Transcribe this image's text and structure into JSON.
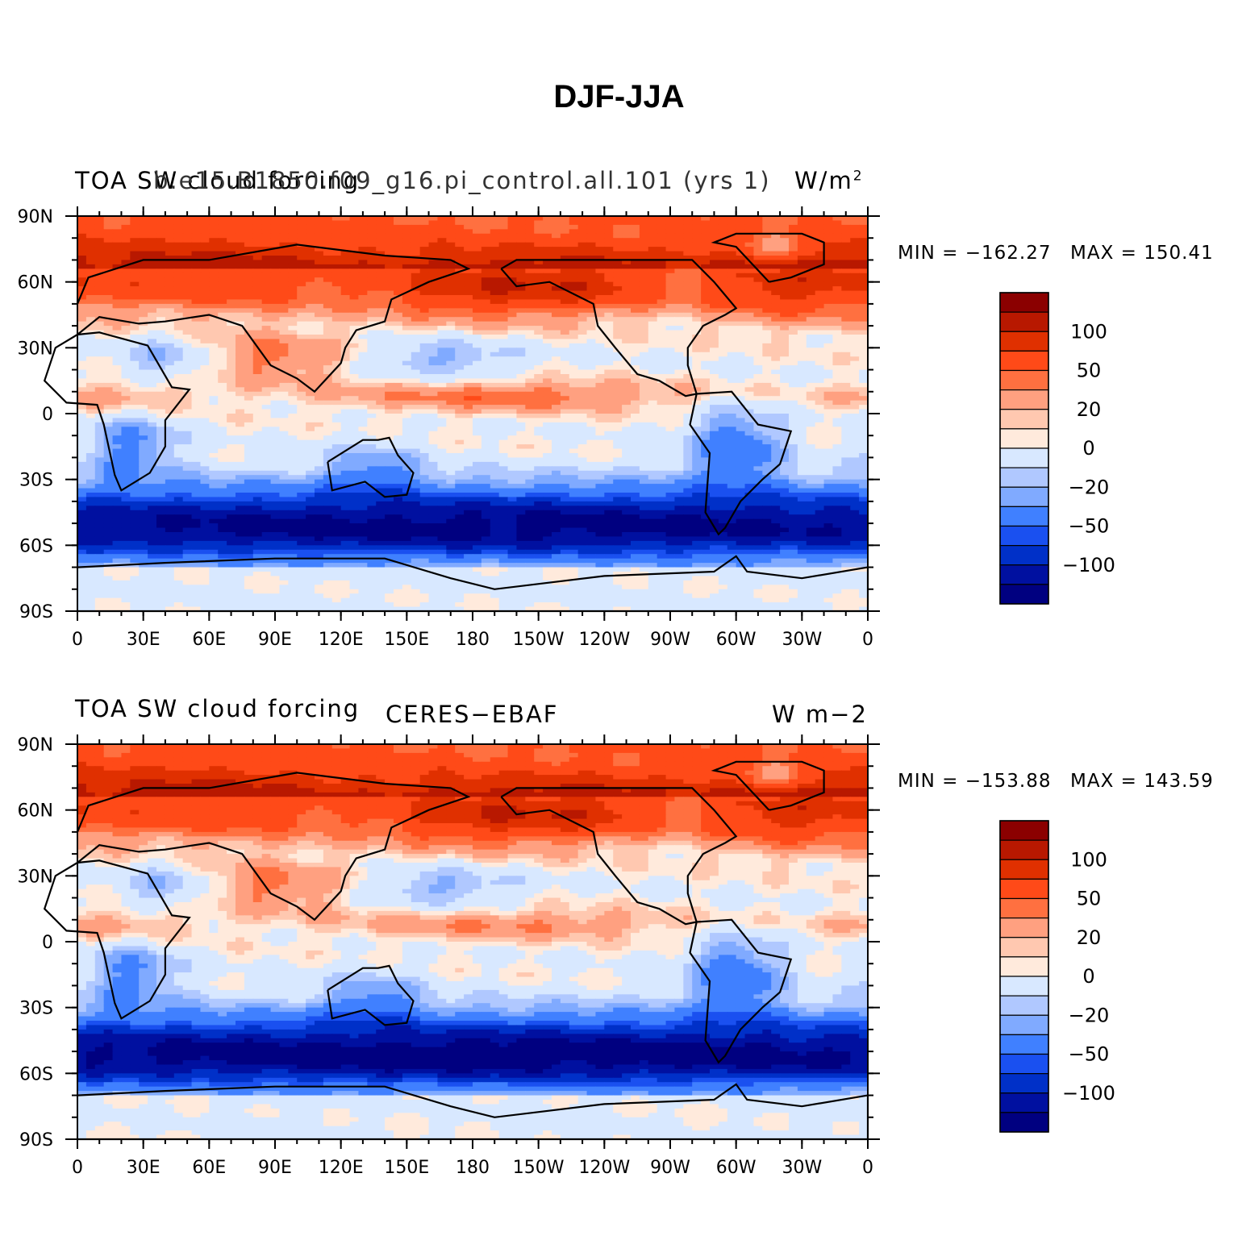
{
  "title": "DJF-JJA",
  "colors": {
    "levels": [
      "#000080",
      "#0010a0",
      "#0030c8",
      "#1a50f0",
      "#4080ff",
      "#80aaff",
      "#b0c8ff",
      "#d8e8ff",
      "#ffeadc",
      "#ffc8b0",
      "#ffa080",
      "#ff7040",
      "#ff4a18",
      "#e03000",
      "#b81800",
      "#8b0000"
    ],
    "coastline": "#000000"
  },
  "chart_data": [
    {
      "type": "heatmap",
      "title_left": "TOA SW cloud forcing",
      "title_center": "b.e15.B1850.f09_g16.pi_control.all.101 (yrs 1)",
      "units": "W/m",
      "units_sup": "2",
      "min_label": "MIN = −162.27",
      "max_label": "MAX = 150.41",
      "x_ticks": [
        "0",
        "30E",
        "60E",
        "90E",
        "120E",
        "150E",
        "180",
        "150W",
        "120W",
        "90W",
        "60W",
        "30W",
        "0"
      ],
      "y_ticks": [
        "90N",
        "60N",
        "30N",
        "0",
        "30S",
        "60S",
        "90S"
      ],
      "colorbar_labels": [
        "100",
        "50",
        "20",
        "0",
        "−20",
        "−50",
        "−100"
      ],
      "field": {
        "itcz_strength": 1.0,
        "southern_ocean_strength": 1.0,
        "antarctic_bias": 0.0
      }
    },
    {
      "type": "heatmap",
      "title_left": "TOA SW cloud forcing",
      "title_center": "CERES−EBAF",
      "units": "W m−2",
      "min_label": "MIN = −153.88",
      "max_label": "MAX = 143.59",
      "x_ticks": [
        "0",
        "30E",
        "60E",
        "90E",
        "120E",
        "150E",
        "180",
        "150W",
        "120W",
        "90W",
        "60W",
        "30W",
        "0"
      ],
      "y_ticks": [
        "90N",
        "60N",
        "30N",
        "0",
        "30S",
        "60S",
        "90S"
      ],
      "colorbar_labels": [
        "100",
        "50",
        "20",
        "0",
        "−20",
        "−50",
        "−100"
      ],
      "field": {
        "itcz_strength": 0.8,
        "southern_ocean_strength": 1.05,
        "antarctic_bias": 0.2
      }
    }
  ]
}
